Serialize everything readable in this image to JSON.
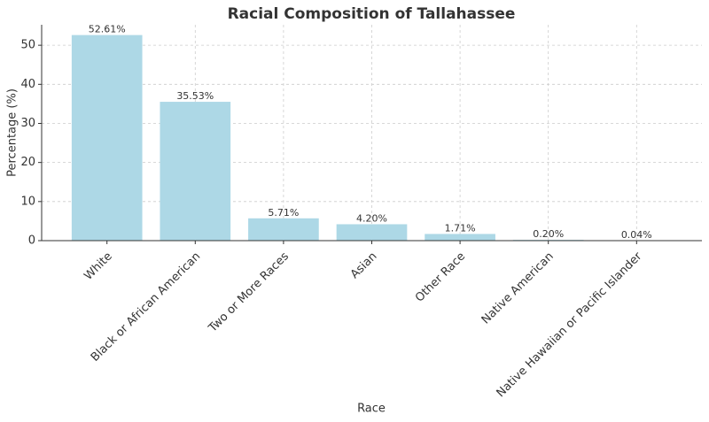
{
  "chart_data": {
    "type": "bar",
    "title": "Racial Composition of Tallahassee",
    "x_label": "Race",
    "y_label": "Percentage (%)",
    "categories": [
      "White",
      "Black or African American",
      "Two or More Races",
      "Asian",
      "Other Race",
      "Native American",
      "Native Hawaiian or Pacific Islander"
    ],
    "values": [
      52.61,
      35.53,
      5.71,
      4.2,
      1.71,
      0.2,
      0.04
    ],
    "value_labels": [
      "52.61%",
      "35.53%",
      "5.71%",
      "4.20%",
      "1.71%",
      "0.20%",
      "0.04%"
    ],
    "color": "#add8e6",
    "ylim": [
      0,
      55.24
    ],
    "yticks": [
      0,
      10,
      20,
      30,
      40,
      50
    ],
    "grid": true
  }
}
